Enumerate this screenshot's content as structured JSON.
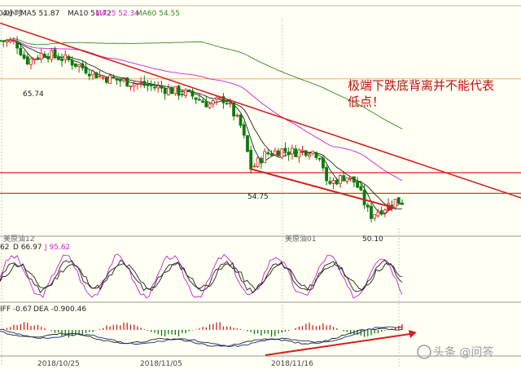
{
  "header": {
    "period_label": "4小时",
    "ma5": "MA5 51.87",
    "ma10": "MA10 51.72",
    "ma25": "MA25 52.34",
    "ma60": "MA60 54.55",
    "ma5_color": "#222222",
    "ma10_color": "#222222",
    "ma25_color": "#d020d0",
    "ma60_color": "#2e8b2e",
    "left_fragment": "0,0)"
  },
  "annotation": {
    "line1": "极端下跌底背离并不能代表",
    "line2": "低点！",
    "color": "#c01010"
  },
  "price_labels": [
    "65.74",
    "54.75",
    "50.10"
  ],
  "contract_labels": [
    "美原油12",
    "美原油01"
  ],
  "kdj_header": {
    "k": "62",
    "d": "D 66.97",
    "j": "J 95.62",
    "d_color": "#222222",
    "j_color": "#d020d0"
  },
  "macd_header": {
    "diff": "IFF -0.67",
    "dea": "DEA -0.90",
    "macd": "0.46"
  },
  "x_dates": [
    "2018/10/25",
    "2018/11/05",
    "2018/11/16"
  ],
  "watermark": "头条 @问答",
  "chart_data": {
    "type": "candlestick",
    "instrument": "美原油",
    "period": "4小时",
    "y_range": [
      49,
      70
    ],
    "indicators": {
      "MA5": 51.87,
      "MA10": 51.72,
      "MA25": 52.34,
      "MA60": 54.55,
      "KDJ_D": 66.97,
      "KDJ_J": 95.62,
      "MACD_DIFF": -0.67,
      "MACD_DEA": -0.9,
      "MACD": 0.46
    },
    "close_path": [
      {
        "x": 0,
        "y": 67.8
      },
      {
        "x": 0.04,
        "y": 67.6
      },
      {
        "x": 0.065,
        "y": 65.8
      },
      {
        "x": 0.11,
        "y": 66.6
      },
      {
        "x": 0.17,
        "y": 65.9
      },
      {
        "x": 0.25,
        "y": 64.3
      },
      {
        "x": 0.33,
        "y": 63.7
      },
      {
        "x": 0.4,
        "y": 63.2
      },
      {
        "x": 0.47,
        "y": 62.6
      },
      {
        "x": 0.52,
        "y": 61.6
      },
      {
        "x": 0.56,
        "y": 62.2
      },
      {
        "x": 0.6,
        "y": 59.4
      },
      {
        "x": 0.625,
        "y": 55.4
      },
      {
        "x": 0.66,
        "y": 56.8
      },
      {
        "x": 0.7,
        "y": 57.2
      },
      {
        "x": 0.73,
        "y": 57.0
      },
      {
        "x": 0.77,
        "y": 57.2
      },
      {
        "x": 0.8,
        "y": 56.6
      },
      {
        "x": 0.81,
        "y": 53.8
      },
      {
        "x": 0.86,
        "y": 54.7
      },
      {
        "x": 0.885,
        "y": 54.0
      },
      {
        "x": 0.92,
        "y": 50.8
      },
      {
        "x": 0.94,
        "y": 51.3
      },
      {
        "x": 0.96,
        "y": 51.7
      },
      {
        "x": 0.98,
        "y": 52.3
      },
      {
        "x": 1.0,
        "y": 52.2
      }
    ],
    "marked_prices": [
      65.74,
      54.75,
      50.1
    ],
    "horizontal_levels": [
      64.1,
      55.0,
      53.0
    ],
    "trend_lines": [
      {
        "name": "downtrend",
        "points": [
          [
            0,
            69.5
          ],
          [
            1.3,
            52.5
          ]
        ]
      },
      {
        "name": "divergence-down",
        "points": [
          [
            0.62,
            55.4
          ],
          [
            0.98,
            51.6
          ]
        ]
      }
    ]
  }
}
